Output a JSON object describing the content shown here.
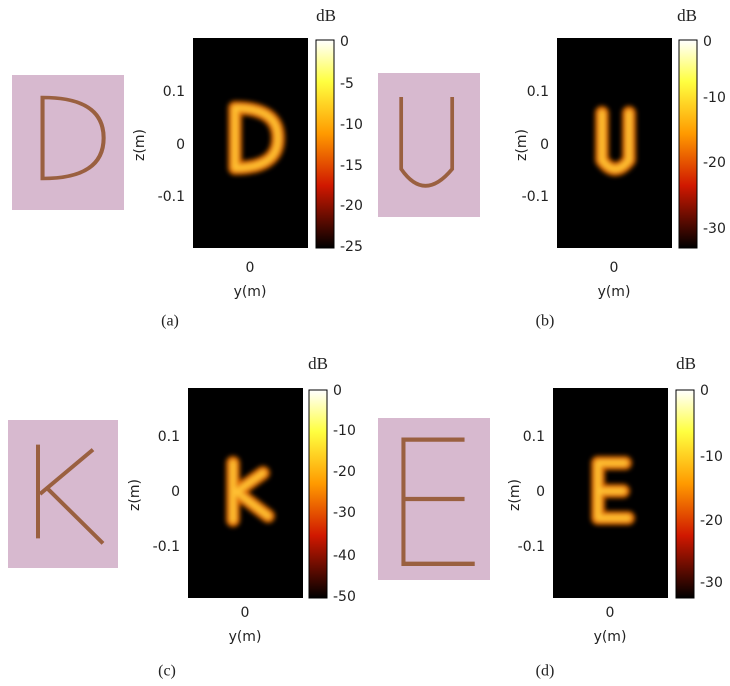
{
  "panels": [
    {
      "caption": "(a)",
      "colorbar_label": "dB",
      "colorbar_ticks": [
        "0",
        "-5",
        "-10",
        "-15",
        "-20",
        "-25"
      ],
      "yticks": [
        "0.1",
        "0",
        "-0.1"
      ],
      "xtick": "0",
      "xlabel": "y(m)",
      "ylabel": "z(m)"
    },
    {
      "caption": "(b)",
      "colorbar_label": "dB",
      "colorbar_ticks": [
        "0",
        "-10",
        "-20",
        "-30"
      ],
      "yticks": [
        "0.1",
        "0",
        "-0.1"
      ],
      "xtick": "0",
      "xlabel": "y(m)",
      "ylabel": "z(m)"
    },
    {
      "caption": "(c)",
      "colorbar_label": "dB",
      "colorbar_ticks": [
        "0",
        "-10",
        "-20",
        "-30",
        "-40",
        "-50"
      ],
      "yticks": [
        "0.1",
        "0",
        "-0.1"
      ],
      "xtick": "0",
      "xlabel": "y(m)",
      "ylabel": "z(m)"
    },
    {
      "caption": "(d)",
      "colorbar_label": "dB",
      "colorbar_ticks": [
        "0",
        "-10",
        "-20",
        "-30"
      ],
      "yticks": [
        "0.1",
        "0",
        "-0.1"
      ],
      "xtick": "0",
      "xlabel": "y(m)",
      "ylabel": "z(m)"
    }
  ]
}
